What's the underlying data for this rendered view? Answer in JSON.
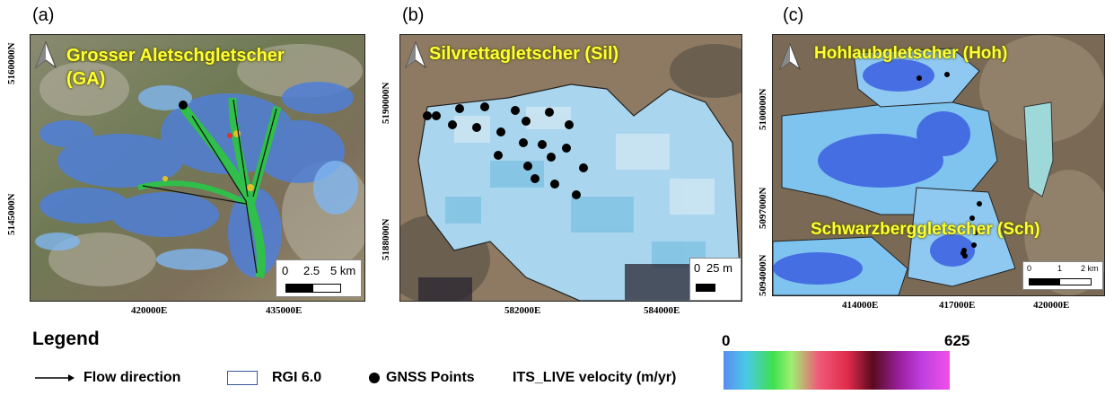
{
  "panels": [
    {
      "letter": "(a)",
      "title_line1": "Grosser Aletschgletscher",
      "title_line2": "(GA)",
      "yticks": [
        "5160000N",
        "5145000N"
      ],
      "xticks": [
        "420000E",
        "435000E"
      ],
      "scale": {
        "labels": [
          "0",
          "2.5",
          "5 km"
        ]
      }
    },
    {
      "letter": "(b)",
      "title_line1": "Silvrettagletscher (Sil)",
      "yticks": [
        "5190000N",
        "5188000N"
      ],
      "xticks": [
        "582000E",
        "584000E"
      ],
      "scale": {
        "labels": [
          "0",
          "25 m"
        ]
      }
    },
    {
      "letter": "(c)",
      "title_line1": "Hohlaubgletscher (Hoh)",
      "title_line2": "Schwarzberggletscher (Sch)",
      "yticks": [
        "5100000N",
        "5097000N",
        "5094000N"
      ],
      "xticks": [
        "414000E",
        "417000E",
        "420000E"
      ],
      "scale": {
        "labels": [
          "0",
          "1",
          "2 km"
        ]
      }
    }
  ],
  "legend": {
    "title": "Legend",
    "flow": "Flow direction",
    "rgi": "RGI 6.0",
    "gnss": "GNSS Points",
    "velocity": "ITS_LIVE velocity (m/yr)",
    "cb_min": "0",
    "cb_max": "625",
    "colors": {
      "rgi_outline": "#3a5a9a",
      "gnss": "#000000",
      "title_yellow": "#ffff33"
    }
  }
}
